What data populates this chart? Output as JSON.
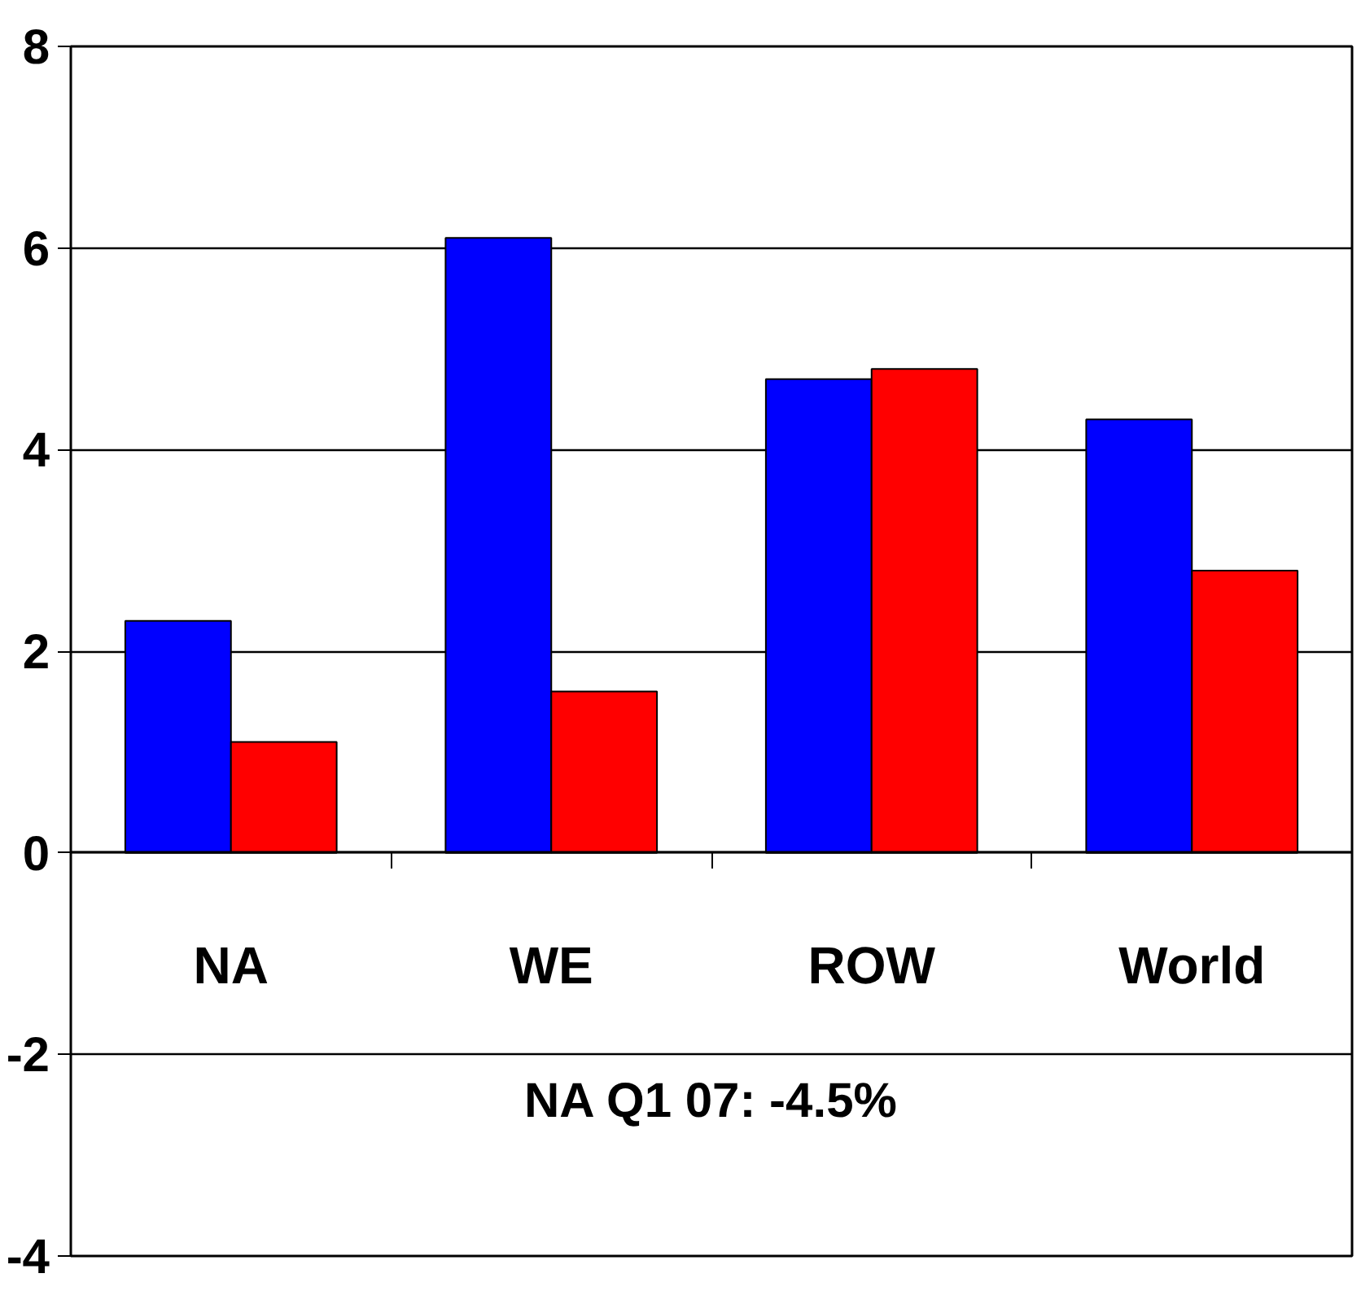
{
  "chart_data": {
    "type": "bar",
    "categories": [
      "NA",
      "WE",
      "ROW",
      "World"
    ],
    "series": [
      {
        "color": "#0000ff",
        "values": [
          2.3,
          6.1,
          4.7,
          4.3
        ]
      },
      {
        "color": "#ff0000",
        "values": [
          1.1,
          1.6,
          4.8,
          2.8
        ]
      }
    ],
    "ylim": [
      -4,
      8
    ],
    "yticks": [
      {
        "value": -4,
        "label": "-4"
      },
      {
        "value": -2,
        "label": "-2"
      },
      0,
      2,
      4,
      6,
      8
    ],
    "grid": "y",
    "annotations": [
      "NA Q1 07: -4.5%"
    ]
  }
}
